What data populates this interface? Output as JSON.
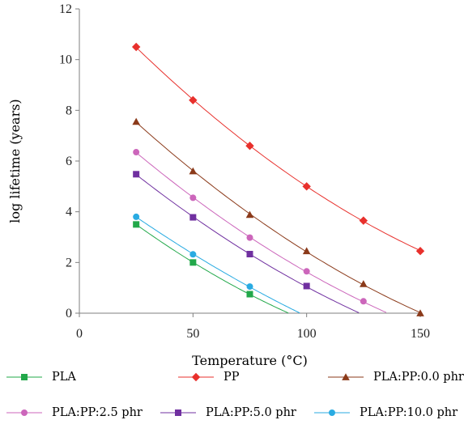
{
  "chart_data": {
    "type": "line",
    "xlabel": "Temperature (°C)",
    "ylabel": "log lifetime (years)",
    "xlim": [
      0,
      150
    ],
    "ylim": [
      0,
      12
    ],
    "xticks": [
      0,
      50,
      100,
      150
    ],
    "yticks": [
      0,
      2,
      4,
      6,
      8,
      10,
      12
    ],
    "grid": false,
    "legend_position": "bottom",
    "series": [
      {
        "name": "PLA",
        "color": "#22a84a",
        "marker": "square",
        "x": [
          25,
          50,
          75
        ],
        "y": [
          3.5,
          2.0,
          0.75
        ],
        "fit_zero_at": 92
      },
      {
        "name": "PP",
        "color": "#e8302c",
        "marker": "diamond",
        "x": [
          25,
          50,
          75,
          100,
          125,
          150
        ],
        "y": [
          10.5,
          8.4,
          6.6,
          5.0,
          3.65,
          2.45
        ]
      },
      {
        "name": "PLA:PP:0.0 phr",
        "color": "#8b3a1a",
        "marker": "triangle",
        "x": [
          25,
          50,
          75,
          100,
          125,
          150
        ],
        "y": [
          7.55,
          5.6,
          3.88,
          2.45,
          1.15,
          0.0
        ]
      },
      {
        "name": "PLA:PP:2.5 phr",
        "color": "#cc66bb",
        "marker": "circle",
        "x": [
          25,
          50,
          75,
          100,
          125
        ],
        "y": [
          6.35,
          4.55,
          2.98,
          1.65,
          0.47
        ],
        "fit_zero_at": 135
      },
      {
        "name": "PLA:PP:5.0 phr",
        "color": "#7030a0",
        "marker": "square",
        "x": [
          25,
          50,
          75,
          100
        ],
        "y": [
          5.48,
          3.78,
          2.33,
          1.07
        ],
        "fit_zero_at": 123
      },
      {
        "name": "PLA:PP:10.0 phr",
        "color": "#29abe2",
        "marker": "circle",
        "x": [
          25,
          50,
          75
        ],
        "y": [
          3.8,
          2.32,
          1.05
        ],
        "fit_zero_at": 97
      }
    ]
  }
}
